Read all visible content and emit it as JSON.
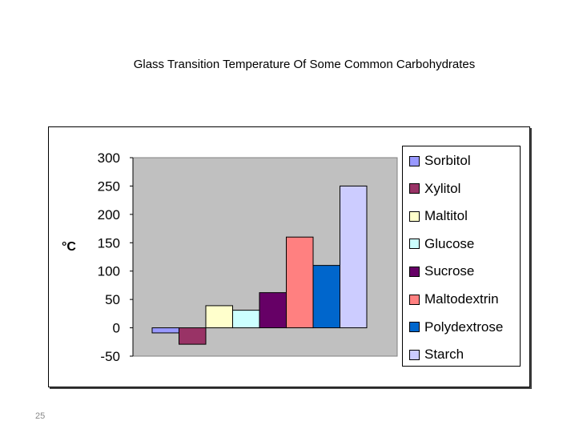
{
  "chart_data": {
    "type": "bar",
    "title": "Glass Transition Temperature Of Some Common Carbohydrates",
    "xlabel": "",
    "ylabel": "°C",
    "ylim": [
      -50,
      300
    ],
    "yticks": [
      300,
      250,
      200,
      150,
      100,
      50,
      0,
      -50
    ],
    "grid": false,
    "legend_position": "right",
    "series": [
      {
        "name": "Sorbitol",
        "value": -9,
        "color": "#9999ff"
      },
      {
        "name": "Xylitol",
        "value": -29,
        "color": "#993366"
      },
      {
        "name": "Maltitol",
        "value": 39,
        "color": "#ffffcc"
      },
      {
        "name": "Glucose",
        "value": 31,
        "color": "#ccffff"
      },
      {
        "name": "Sucrose",
        "value": 62,
        "color": "#660066"
      },
      {
        "name": "Maltodextrin",
        "value": 160,
        "color": "#ff8080"
      },
      {
        "name": "Polydextrose",
        "value": 110,
        "color": "#0066cc"
      },
      {
        "name": "Starch",
        "value": 250,
        "color": "#ccccff"
      }
    ]
  },
  "slide": {
    "number": "25"
  },
  "colors": {
    "plot_area": "#c0c0c0"
  }
}
